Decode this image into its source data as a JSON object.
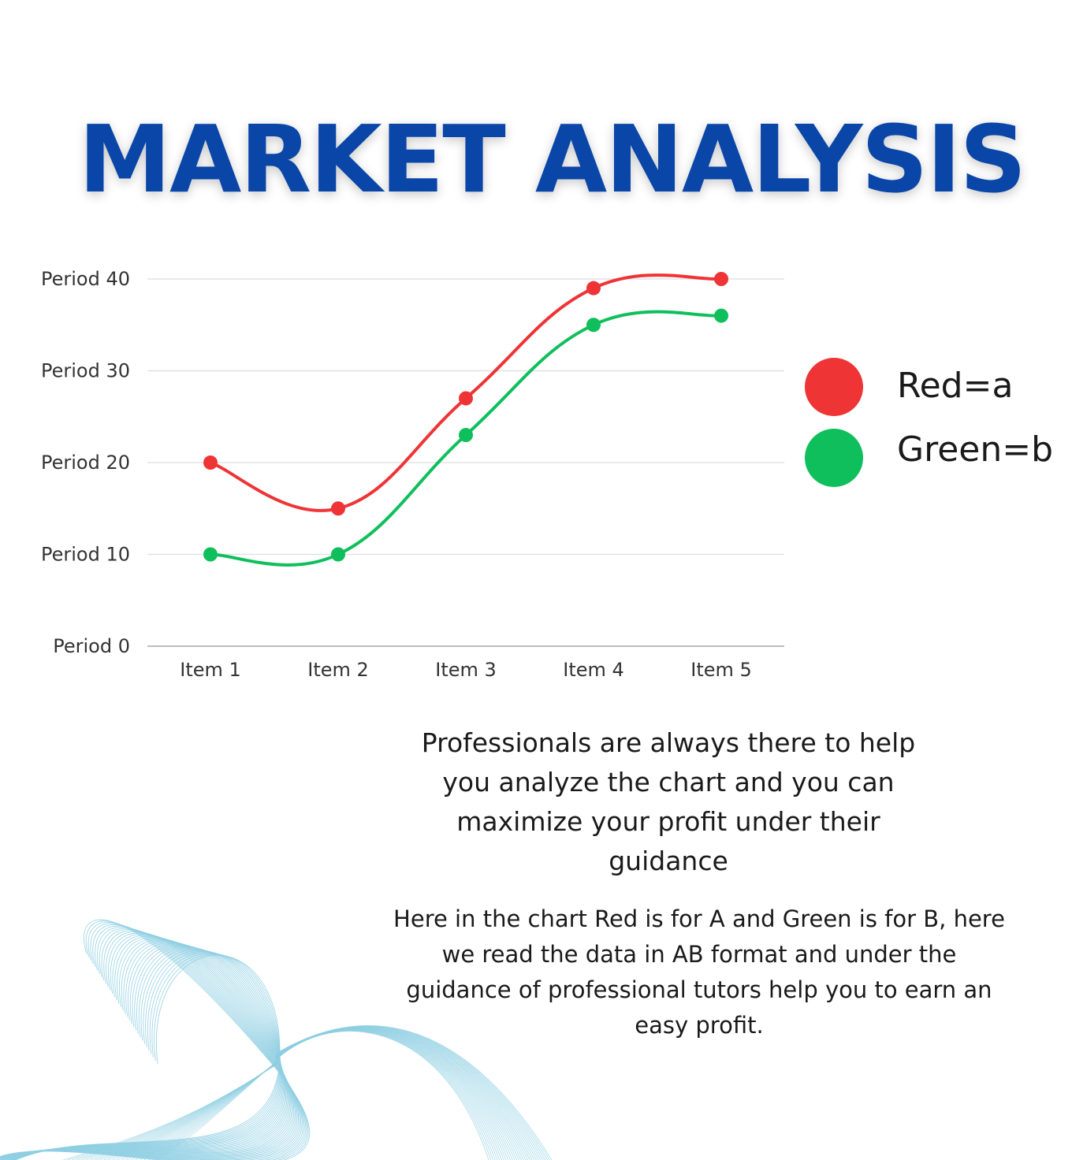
{
  "title": "MARKET ANALYSIS",
  "colors": {
    "title": "#0a46a8",
    "red": "#ef3436",
    "green": "#0fbf5c",
    "grid": "#dddddd",
    "decoration": "#8fcfe3"
  },
  "legend": {
    "items": [
      {
        "label": "Red=a",
        "color": "#ef3436"
      },
      {
        "label": "Green=b",
        "color": "#0fbf5c"
      }
    ]
  },
  "paragraphs": {
    "main": "Professionals are always there to help you analyze the chart and  you can maximize your profit under their guidance",
    "note": "Here in the chart Red is for A and Green is for B, here we read the data in AB format and under the guidance of professional tutors help you to earn an easy profit."
  },
  "chart_data": {
    "type": "line",
    "title": "",
    "categories": [
      "Item 1",
      "Item 2",
      "Item 3",
      "Item 4",
      "Item 5"
    ],
    "y_tick_labels": [
      "Period 0",
      "Period 10",
      "Period 20",
      "Period 30",
      "Period 40"
    ],
    "y_ticks": [
      0,
      10,
      20,
      30,
      40
    ],
    "ylim": [
      0,
      40
    ],
    "grid": true,
    "legend_position": "right",
    "smooth": true,
    "series": [
      {
        "name": "Red=a",
        "color": "#ef3436",
        "values": [
          20,
          15,
          27,
          39,
          40
        ]
      },
      {
        "name": "Green=b",
        "color": "#0fbf5c",
        "values": [
          10,
          10,
          23,
          35,
          36
        ]
      }
    ]
  }
}
